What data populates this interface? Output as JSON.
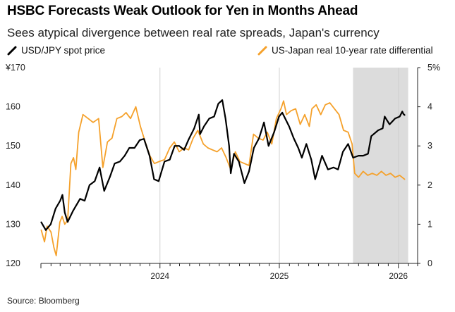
{
  "header": {
    "title": "HSBC Forecasts Weak Outlook for Yen in Months Ahead",
    "subtitle": "Sees atypical divergence between real rate spreads, Japan's currency"
  },
  "legend": [
    {
      "label": "USD/JPY spot price",
      "color": "#000000",
      "icon": "diagonal-line-icon"
    },
    {
      "label": "US-Japan real 10-year rate differential",
      "color": "#f5a12b",
      "icon": "diagonal-line-icon"
    }
  ],
  "footer": {
    "source": "Source: Bloomberg"
  },
  "chart_data": {
    "type": "line",
    "xlabel": "",
    "x_ticks": [
      "2024",
      "2025",
      "2026"
    ],
    "x_range": [
      "2023-01-01",
      "2026-03-01"
    ],
    "y_left": {
      "ticks": [
        "¥170",
        "160",
        "150",
        "140",
        "130",
        "120"
      ],
      "range": [
        120,
        170
      ],
      "unit": "¥"
    },
    "y_right": {
      "ticks": [
        "5%",
        "4",
        "3",
        "2",
        "1",
        "0"
      ],
      "range": [
        0,
        5
      ],
      "unit": "%"
    },
    "shaded_region": {
      "start": "2025-08-15",
      "end": "2026-01-31",
      "color": "#dcdcdc"
    },
    "grid": "vertical",
    "series": [
      {
        "name": "USD/JPY spot price",
        "axis": "left",
        "color": "#000000",
        "points": [
          [
            "2023-01-02",
            130.5
          ],
          [
            "2023-01-16",
            128.5
          ],
          [
            "2023-01-31",
            130.0
          ],
          [
            "2023-02-15",
            134.0
          ],
          [
            "2023-03-01",
            136.0
          ],
          [
            "2023-03-08",
            137.5
          ],
          [
            "2023-03-15",
            133.0
          ],
          [
            "2023-03-24",
            130.6
          ],
          [
            "2023-04-10",
            133.5
          ],
          [
            "2023-05-01",
            136.5
          ],
          [
            "2023-05-15",
            136.0
          ],
          [
            "2023-05-30",
            140.0
          ],
          [
            "2023-06-15",
            141.0
          ],
          [
            "2023-06-30",
            144.5
          ],
          [
            "2023-07-14",
            138.5
          ],
          [
            "2023-07-31",
            142.0
          ],
          [
            "2023-08-15",
            145.5
          ],
          [
            "2023-08-31",
            146.0
          ],
          [
            "2023-09-15",
            147.5
          ],
          [
            "2023-09-29",
            149.5
          ],
          [
            "2023-10-15",
            149.5
          ],
          [
            "2023-10-31",
            151.5
          ],
          [
            "2023-11-13",
            151.8
          ],
          [
            "2023-11-30",
            147.5
          ],
          [
            "2023-12-14",
            141.5
          ],
          [
            "2023-12-28",
            141.0
          ],
          [
            "2024-01-15",
            146.0
          ],
          [
            "2024-01-31",
            146.5
          ],
          [
            "2024-02-15",
            150.0
          ],
          [
            "2024-02-29",
            150.0
          ],
          [
            "2024-03-15",
            149.0
          ],
          [
            "2024-03-28",
            151.5
          ],
          [
            "2024-04-15",
            154.5
          ],
          [
            "2024-04-29",
            158.0
          ],
          [
            "2024-05-03",
            153.0
          ],
          [
            "2024-05-15",
            155.0
          ],
          [
            "2024-05-31",
            157.0
          ],
          [
            "2024-06-15",
            157.5
          ],
          [
            "2024-06-28",
            160.8
          ],
          [
            "2024-07-10",
            161.7
          ],
          [
            "2024-07-20",
            157.0
          ],
          [
            "2024-07-31",
            150.0
          ],
          [
            "2024-08-05",
            143.0
          ],
          [
            "2024-08-15",
            148.0
          ],
          [
            "2024-08-30",
            146.0
          ],
          [
            "2024-09-16",
            140.5
          ],
          [
            "2024-09-30",
            143.5
          ],
          [
            "2024-10-15",
            149.5
          ],
          [
            "2024-10-31",
            152.0
          ],
          [
            "2024-11-15",
            156.0
          ],
          [
            "2024-11-29",
            150.0
          ],
          [
            "2024-12-16",
            153.5
          ],
          [
            "2024-12-31",
            157.5
          ],
          [
            "2025-01-10",
            158.5
          ],
          [
            "2025-01-31",
            155.0
          ],
          [
            "2025-02-14",
            152.0
          ],
          [
            "2025-02-28",
            149.5
          ],
          [
            "2025-03-11",
            147.0
          ],
          [
            "2025-03-25",
            150.5
          ],
          [
            "2025-04-09",
            146.5
          ],
          [
            "2025-04-21",
            141.5
          ],
          [
            "2025-05-12",
            147.5
          ],
          [
            "2025-05-30",
            144.0
          ],
          [
            "2025-06-16",
            144.5
          ],
          [
            "2025-06-30",
            144.0
          ],
          [
            "2025-07-15",
            148.5
          ],
          [
            "2025-07-31",
            150.5
          ],
          [
            "2025-08-15",
            147.0
          ],
          [
            "2025-09-01",
            147.5
          ],
          [
            "2025-09-15",
            147.5
          ],
          [
            "2025-09-30",
            148.0
          ],
          [
            "2025-10-10",
            152.5
          ],
          [
            "2025-10-31",
            154.0
          ],
          [
            "2025-11-14",
            154.5
          ],
          [
            "2025-11-20",
            157.5
          ],
          [
            "2025-12-05",
            155.5
          ],
          [
            "2025-12-22",
            157.0
          ],
          [
            "2026-01-05",
            157.5
          ],
          [
            "2026-01-13",
            158.8
          ],
          [
            "2026-01-16",
            158.2
          ],
          [
            "2026-01-20",
            157.9
          ]
        ]
      },
      {
        "name": "US-Japan real 10-year rate differential",
        "axis": "right",
        "color": "#f5a12b",
        "points": [
          [
            "2023-01-02",
            0.85
          ],
          [
            "2023-01-12",
            0.55
          ],
          [
            "2023-01-20",
            0.95
          ],
          [
            "2023-02-01",
            0.8
          ],
          [
            "2023-02-10",
            0.4
          ],
          [
            "2023-02-17",
            0.2
          ],
          [
            "2023-02-28",
            1.05
          ],
          [
            "2023-03-07",
            1.2
          ],
          [
            "2023-03-15",
            1.0
          ],
          [
            "2023-03-24",
            1.1
          ],
          [
            "2023-04-03",
            2.55
          ],
          [
            "2023-04-11",
            2.7
          ],
          [
            "2023-04-18",
            2.4
          ],
          [
            "2023-04-27",
            3.35
          ],
          [
            "2023-05-10",
            3.8
          ],
          [
            "2023-05-26",
            3.7
          ],
          [
            "2023-06-10",
            3.6
          ],
          [
            "2023-06-27",
            3.7
          ],
          [
            "2023-07-10",
            2.45
          ],
          [
            "2023-07-24",
            3.1
          ],
          [
            "2023-08-07",
            3.2
          ],
          [
            "2023-08-22",
            3.7
          ],
          [
            "2023-09-06",
            3.75
          ],
          [
            "2023-09-19",
            3.85
          ],
          [
            "2023-10-03",
            3.7
          ],
          [
            "2023-10-19",
            4.0
          ],
          [
            "2023-11-02",
            3.5
          ],
          [
            "2023-11-15",
            3.15
          ],
          [
            "2023-12-01",
            2.75
          ],
          [
            "2023-12-15",
            2.55
          ],
          [
            "2023-12-29",
            2.6
          ],
          [
            "2024-01-15",
            2.65
          ],
          [
            "2024-01-31",
            2.95
          ],
          [
            "2024-02-14",
            3.1
          ],
          [
            "2024-02-29",
            2.85
          ],
          [
            "2024-03-15",
            2.95
          ],
          [
            "2024-03-29",
            2.9
          ],
          [
            "2024-04-12",
            3.2
          ],
          [
            "2024-04-26",
            3.4
          ],
          [
            "2024-05-13",
            3.05
          ],
          [
            "2024-05-27",
            2.95
          ],
          [
            "2024-06-10",
            2.9
          ],
          [
            "2024-06-24",
            2.85
          ],
          [
            "2024-07-08",
            2.95
          ],
          [
            "2024-07-22",
            2.7
          ],
          [
            "2024-08-05",
            2.4
          ],
          [
            "2024-08-19",
            2.85
          ],
          [
            "2024-09-02",
            2.6
          ],
          [
            "2024-09-16",
            2.55
          ],
          [
            "2024-09-30",
            2.5
          ],
          [
            "2024-10-14",
            3.3
          ],
          [
            "2024-10-28",
            3.2
          ],
          [
            "2024-11-12",
            3.15
          ],
          [
            "2024-11-25",
            3.35
          ],
          [
            "2024-12-09",
            3.05
          ],
          [
            "2024-12-23",
            3.7
          ],
          [
            "2025-01-06",
            3.95
          ],
          [
            "2025-01-14",
            4.15
          ],
          [
            "2025-01-23",
            3.8
          ],
          [
            "2025-02-06",
            3.9
          ],
          [
            "2025-02-20",
            3.95
          ],
          [
            "2025-03-06",
            3.55
          ],
          [
            "2025-03-20",
            3.8
          ],
          [
            "2025-04-03",
            3.5
          ],
          [
            "2025-04-11",
            3.95
          ],
          [
            "2025-04-24",
            4.05
          ],
          [
            "2025-05-08",
            3.8
          ],
          [
            "2025-05-22",
            4.05
          ],
          [
            "2025-06-05",
            4.1
          ],
          [
            "2025-06-19",
            3.95
          ],
          [
            "2025-07-03",
            3.8
          ],
          [
            "2025-07-17",
            3.4
          ],
          [
            "2025-07-31",
            3.35
          ],
          [
            "2025-08-12",
            3.05
          ],
          [
            "2025-08-20",
            2.3
          ],
          [
            "2025-09-01",
            2.2
          ],
          [
            "2025-09-15",
            2.35
          ],
          [
            "2025-09-29",
            2.25
          ],
          [
            "2025-10-13",
            2.3
          ],
          [
            "2025-10-27",
            2.25
          ],
          [
            "2025-11-10",
            2.35
          ],
          [
            "2025-11-24",
            2.25
          ],
          [
            "2025-12-08",
            2.3
          ],
          [
            "2025-12-22",
            2.2
          ],
          [
            "2026-01-05",
            2.25
          ],
          [
            "2026-01-20",
            2.15
          ]
        ]
      }
    ]
  }
}
